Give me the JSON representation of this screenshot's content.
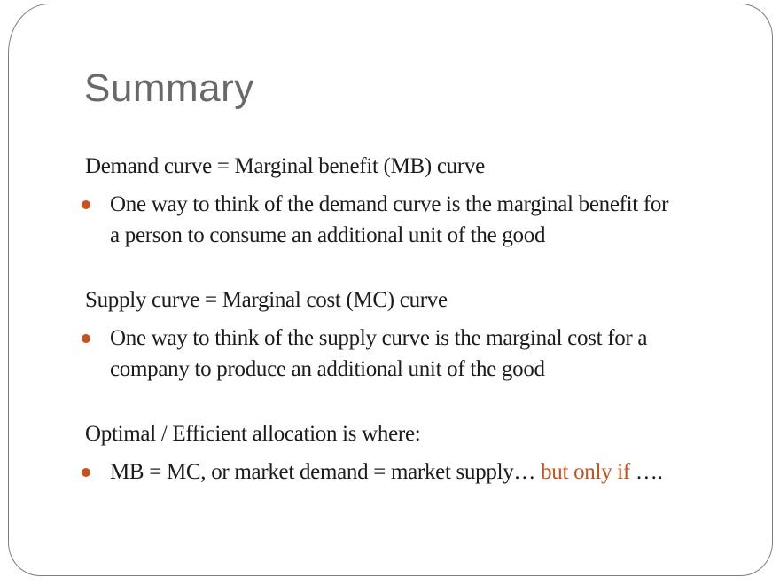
{
  "slide": {
    "colors": {
      "accent": "#c5521f",
      "title": "#696969",
      "text": "#1c1c1c",
      "border": "#7e7e7e",
      "background": "#ffffff"
    },
    "title": "Summary",
    "groups": [
      {
        "header": "Demand curve = Marginal benefit (MB) curve",
        "bullet_lines": [
          "One way to think of the demand curve is the marginal benefit for",
          "a person to consume an additional unit of the good"
        ]
      },
      {
        "header": "Supply curve = Marginal cost (MC) curve",
        "bullet_lines": [
          "One way to think of the supply curve is the marginal cost for a",
          "company to produce an additional unit of the good"
        ]
      },
      {
        "header": "Optimal / Efficient allocation is where:",
        "bullet_segments": [
          {
            "text": "MB = MC, or market demand = market supply… ",
            "style": "default"
          },
          {
            "text": "but only if ",
            "style": "accent"
          },
          {
            "text": "….",
            "style": "default"
          }
        ]
      }
    ]
  }
}
